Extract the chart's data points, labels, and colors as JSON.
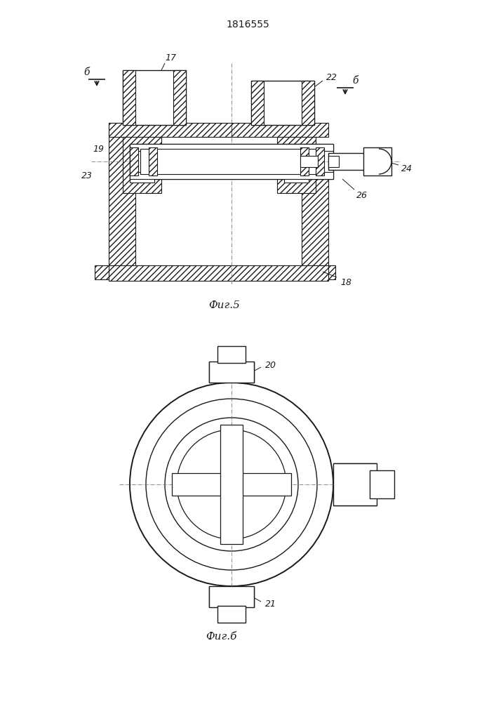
{
  "title": "1816555",
  "fig5_label": "Фиг.5",
  "fig6_label": "Фиг.б",
  "bg_color": "#ffffff",
  "lc": "#1a1a1a",
  "lw": 1.0
}
